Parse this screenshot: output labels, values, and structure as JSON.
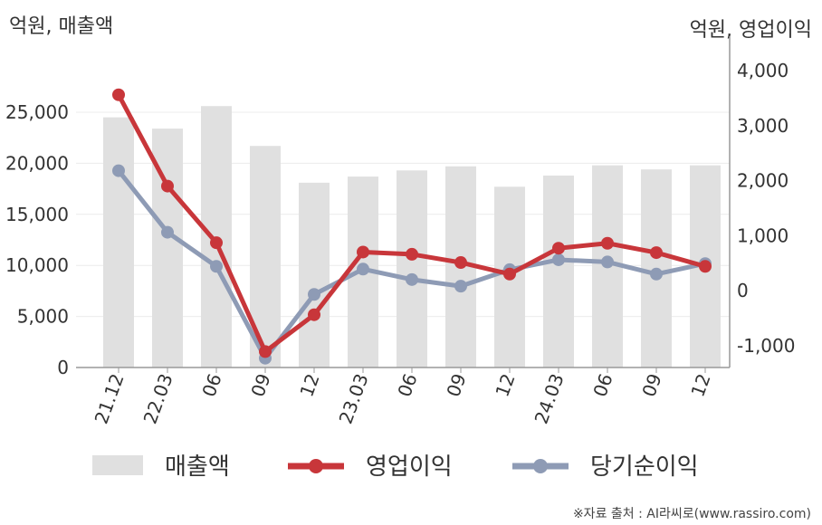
{
  "chart_data": {
    "type": "bar+line",
    "categories": [
      "21.12",
      "22.03",
      "06",
      "09",
      "12",
      "23.03",
      "06",
      "09",
      "12",
      "24.03",
      "06",
      "09",
      "12"
    ],
    "left_axis": {
      "unit_label": "억원, 매출액",
      "ylim": [
        0,
        30000
      ],
      "ticks": [
        "0",
        "5,000",
        "10,000",
        "15,000",
        "20,000",
        "25,000"
      ],
      "tick_values": [
        0,
        5000,
        10000,
        15000,
        20000,
        25000
      ]
    },
    "right_axis": {
      "unit_label": "억원, 영업이익",
      "ylim": [
        -1400,
        4000
      ],
      "ticks": [
        "-1,000",
        "0",
        "1,000",
        "2,000",
        "3,000",
        "4,000"
      ],
      "tick_values": [
        -1000,
        0,
        1000,
        2000,
        3000,
        4000
      ]
    },
    "series": [
      {
        "name": "매출액",
        "type": "bar",
        "axis": "left",
        "color": "#e0e0e0",
        "values": [
          24500,
          23400,
          25600,
          21700,
          18100,
          18700,
          19300,
          19700,
          17700,
          18800,
          19800,
          19400,
          19800
        ]
      },
      {
        "name": "영업이익",
        "type": "line",
        "axis": "right",
        "color": "#c8363a",
        "values": [
          3560,
          1900,
          870,
          -1110,
          -440,
          700,
          660,
          510,
          300,
          770,
          860,
          690,
          440
        ]
      },
      {
        "name": "당기순이익",
        "type": "line",
        "axis": "right",
        "color": "#8e9bb5",
        "values": [
          2180,
          1060,
          440,
          -1230,
          -70,
          390,
          200,
          80,
          380,
          560,
          520,
          300,
          490
        ]
      }
    ],
    "grid": "horizontal",
    "legend_position": "bottom",
    "source": "※자료 출처 : AI라씨로(www.rassiro.com)"
  }
}
